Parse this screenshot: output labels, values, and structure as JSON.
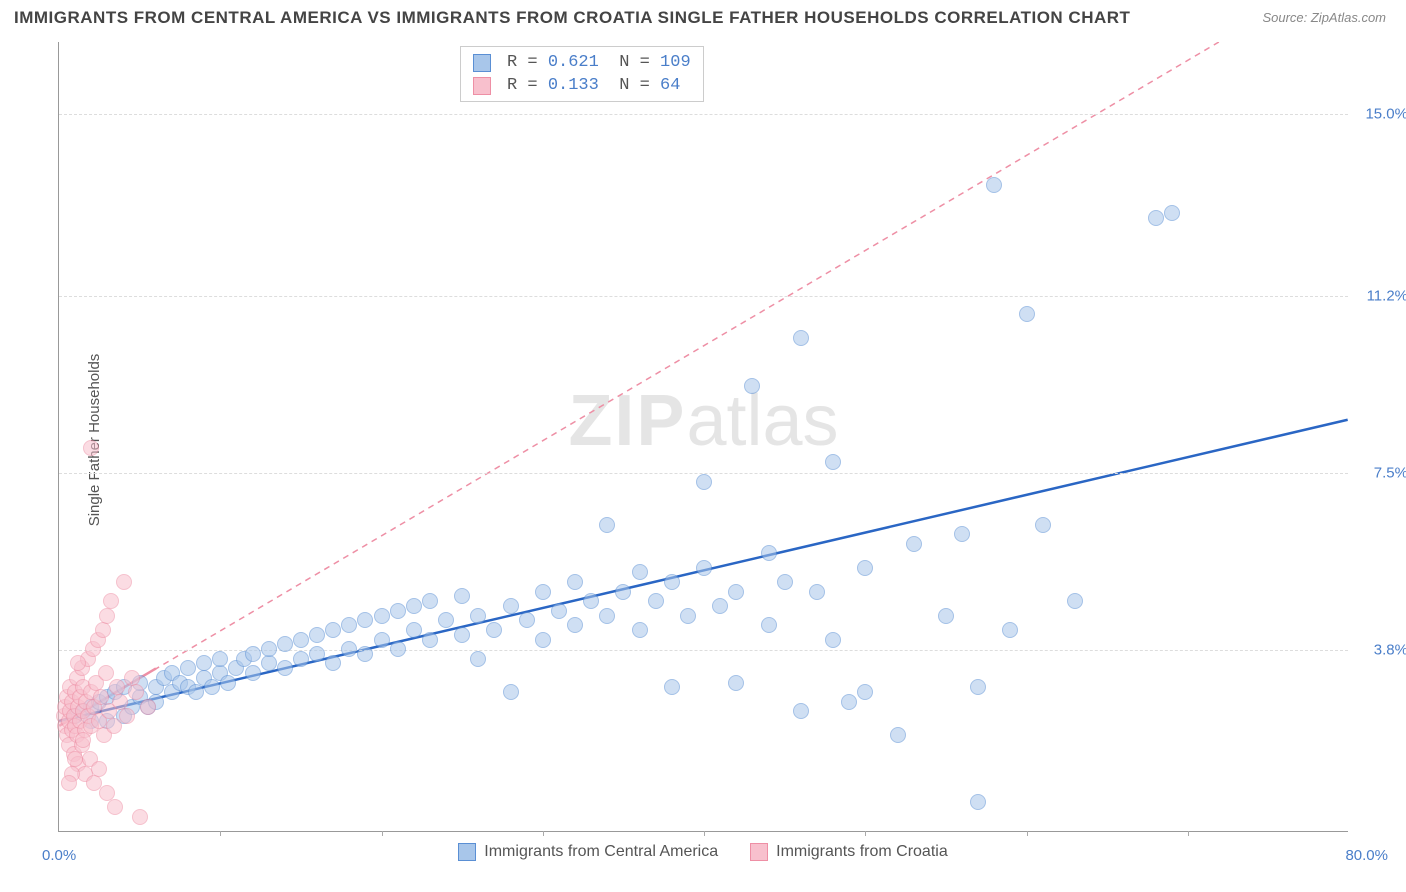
{
  "title": "IMMIGRANTS FROM CENTRAL AMERICA VS IMMIGRANTS FROM CROATIA SINGLE FATHER HOUSEHOLDS CORRELATION CHART",
  "source": "Source: ZipAtlas.com",
  "watermark_bold": "ZIP",
  "watermark_rest": "atlas",
  "chart": {
    "type": "scatter",
    "ylabel": "Single Father Households",
    "xlim": [
      0,
      80
    ],
    "ylim": [
      0,
      16.5
    ],
    "xtick_origin": "0.0%",
    "xtick_max": "80.0%",
    "ytick_labels": [
      "3.8%",
      "7.5%",
      "11.2%",
      "15.0%"
    ],
    "ytick_values": [
      3.8,
      7.5,
      11.2,
      15.0
    ],
    "xminor_count": 8,
    "background_color": "#ffffff",
    "grid_color": "#dddddd",
    "axis_color": "#999999",
    "tick_label_color": "#4a7ec9",
    "marker_radius": 8,
    "marker_opacity": 0.55,
    "series": [
      {
        "name": "Immigrants from Central America",
        "color": "#6699dd",
        "fill": "#a8c6ea",
        "stroke": "#5a8fd4",
        "line_color": "#2a66c4",
        "line_width": 2.5,
        "line_dash": "none",
        "trend": {
          "x1": 0,
          "y1": 2.3,
          "x2": 80,
          "y2": 8.6
        },
        "stats": {
          "R": "0.621",
          "N": "109"
        },
        "points": [
          [
            1,
            2.4
          ],
          [
            1.5,
            2.5
          ],
          [
            2,
            2.6
          ],
          [
            2,
            2.3
          ],
          [
            2.5,
            2.7
          ],
          [
            3,
            2.3
          ],
          [
            3,
            2.8
          ],
          [
            3.5,
            2.9
          ],
          [
            4,
            2.4
          ],
          [
            4,
            3.0
          ],
          [
            4.5,
            2.6
          ],
          [
            5,
            2.8
          ],
          [
            5,
            3.1
          ],
          [
            5.5,
            2.6
          ],
          [
            6,
            3.0
          ],
          [
            6,
            2.7
          ],
          [
            6.5,
            3.2
          ],
          [
            7,
            2.9
          ],
          [
            7,
            3.3
          ],
          [
            7.5,
            3.1
          ],
          [
            8,
            3.0
          ],
          [
            8,
            3.4
          ],
          [
            8.5,
            2.9
          ],
          [
            9,
            3.2
          ],
          [
            9,
            3.5
          ],
          [
            9.5,
            3.0
          ],
          [
            10,
            3.3
          ],
          [
            10,
            3.6
          ],
          [
            10.5,
            3.1
          ],
          [
            11,
            3.4
          ],
          [
            11.5,
            3.6
          ],
          [
            12,
            3.3
          ],
          [
            12,
            3.7
          ],
          [
            13,
            3.5
          ],
          [
            13,
            3.8
          ],
          [
            14,
            3.4
          ],
          [
            14,
            3.9
          ],
          [
            15,
            3.6
          ],
          [
            15,
            4.0
          ],
          [
            16,
            3.7
          ],
          [
            16,
            4.1
          ],
          [
            17,
            3.5
          ],
          [
            17,
            4.2
          ],
          [
            18,
            3.8
          ],
          [
            18,
            4.3
          ],
          [
            19,
            3.7
          ],
          [
            19,
            4.4
          ],
          [
            20,
            4.0
          ],
          [
            20,
            4.5
          ],
          [
            21,
            3.8
          ],
          [
            21,
            4.6
          ],
          [
            22,
            4.2
          ],
          [
            22,
            4.7
          ],
          [
            23,
            4.0
          ],
          [
            23,
            4.8
          ],
          [
            24,
            4.4
          ],
          [
            25,
            4.1
          ],
          [
            25,
            4.9
          ],
          [
            26,
            3.6
          ],
          [
            26,
            4.5
          ],
          [
            27,
            4.2
          ],
          [
            28,
            4.7
          ],
          [
            28,
            2.9
          ],
          [
            29,
            4.4
          ],
          [
            30,
            4.0
          ],
          [
            30,
            5.0
          ],
          [
            31,
            4.6
          ],
          [
            32,
            4.3
          ],
          [
            32,
            5.2
          ],
          [
            33,
            4.8
          ],
          [
            34,
            4.5
          ],
          [
            34,
            6.4
          ],
          [
            35,
            5.0
          ],
          [
            36,
            4.2
          ],
          [
            36,
            5.4
          ],
          [
            37,
            4.8
          ],
          [
            38,
            5.2
          ],
          [
            38,
            3.0
          ],
          [
            39,
            4.5
          ],
          [
            40,
            5.5
          ],
          [
            40,
            7.3
          ],
          [
            41,
            4.7
          ],
          [
            42,
            5.0
          ],
          [
            42,
            3.1
          ],
          [
            43,
            9.3
          ],
          [
            44,
            5.8
          ],
          [
            44,
            4.3
          ],
          [
            45,
            5.2
          ],
          [
            46,
            10.3
          ],
          [
            46,
            2.5
          ],
          [
            47,
            5.0
          ],
          [
            48,
            7.7
          ],
          [
            48,
            4.0
          ],
          [
            49,
            2.7
          ],
          [
            50,
            5.5
          ],
          [
            50,
            2.9
          ],
          [
            52,
            2.0
          ],
          [
            53,
            6.0
          ],
          [
            55,
            4.5
          ],
          [
            56,
            6.2
          ],
          [
            57,
            3.0
          ],
          [
            58,
            13.5
          ],
          [
            59,
            4.2
          ],
          [
            60,
            10.8
          ],
          [
            61,
            6.4
          ],
          [
            63,
            4.8
          ],
          [
            68,
            12.8
          ],
          [
            69,
            12.9
          ],
          [
            57,
            0.6
          ]
        ]
      },
      {
        "name": "Immigrants from Croatia",
        "color": "#f5a5b8",
        "fill": "#f8c0cd",
        "stroke": "#ee8fa5",
        "line_color": "#ee8fa5",
        "line_width": 1.5,
        "line_dash": "6,5",
        "trend": {
          "x1": 0,
          "y1": 2.2,
          "x2": 72,
          "y2": 16.5
        },
        "solid_trend": {
          "x1": 0,
          "y1": 2.2,
          "x2": 6,
          "y2": 3.4
        },
        "stats": {
          "R": "0.133",
          "N": " 64"
        },
        "points": [
          [
            0.3,
            2.4
          ],
          [
            0.4,
            2.2
          ],
          [
            0.4,
            2.6
          ],
          [
            0.5,
            2.0
          ],
          [
            0.5,
            2.8
          ],
          [
            0.6,
            2.3
          ],
          [
            0.6,
            1.8
          ],
          [
            0.7,
            2.5
          ],
          [
            0.7,
            3.0
          ],
          [
            0.8,
            2.1
          ],
          [
            0.8,
            2.7
          ],
          [
            0.9,
            1.6
          ],
          [
            0.9,
            2.4
          ],
          [
            1.0,
            2.9
          ],
          [
            1.0,
            2.2
          ],
          [
            1.1,
            3.2
          ],
          [
            1.1,
            2.0
          ],
          [
            1.2,
            2.6
          ],
          [
            1.2,
            1.4
          ],
          [
            1.3,
            2.8
          ],
          [
            1.3,
            2.3
          ],
          [
            1.4,
            3.4
          ],
          [
            1.4,
            1.8
          ],
          [
            1.5,
            2.5
          ],
          [
            1.5,
            3.0
          ],
          [
            1.6,
            2.1
          ],
          [
            1.6,
            1.2
          ],
          [
            1.7,
            2.7
          ],
          [
            1.8,
            3.6
          ],
          [
            1.8,
            2.4
          ],
          [
            1.9,
            1.5
          ],
          [
            2.0,
            2.9
          ],
          [
            2.0,
            2.2
          ],
          [
            2.1,
            3.8
          ],
          [
            2.2,
            1.0
          ],
          [
            2.2,
            2.6
          ],
          [
            2.3,
            3.1
          ],
          [
            2.4,
            4.0
          ],
          [
            2.5,
            2.3
          ],
          [
            2.5,
            1.3
          ],
          [
            2.6,
            2.8
          ],
          [
            2.7,
            4.2
          ],
          [
            2.8,
            2.0
          ],
          [
            2.9,
            3.3
          ],
          [
            3.0,
            4.5
          ],
          [
            3.0,
            0.8
          ],
          [
            3.1,
            2.5
          ],
          [
            3.2,
            4.8
          ],
          [
            3.4,
            2.2
          ],
          [
            3.5,
            0.5
          ],
          [
            3.6,
            3.0
          ],
          [
            3.8,
            2.7
          ],
          [
            4.0,
            5.2
          ],
          [
            4.2,
            2.4
          ],
          [
            4.5,
            3.2
          ],
          [
            4.8,
            2.9
          ],
          [
            5.0,
            0.3
          ],
          [
            5.5,
            2.6
          ],
          [
            2.0,
            8.0
          ],
          [
            1.5,
            1.9
          ],
          [
            1.0,
            1.5
          ],
          [
            0.8,
            1.2
          ],
          [
            0.6,
            1.0
          ],
          [
            1.2,
            3.5
          ]
        ]
      }
    ]
  },
  "bottom_legend": [
    {
      "label": "Immigrants from Central America",
      "fill": "#a8c6ea",
      "border": "#5a8fd4"
    },
    {
      "label": "Immigrants from Croatia",
      "fill": "#f8c0cd",
      "border": "#ee8fa5"
    }
  ]
}
